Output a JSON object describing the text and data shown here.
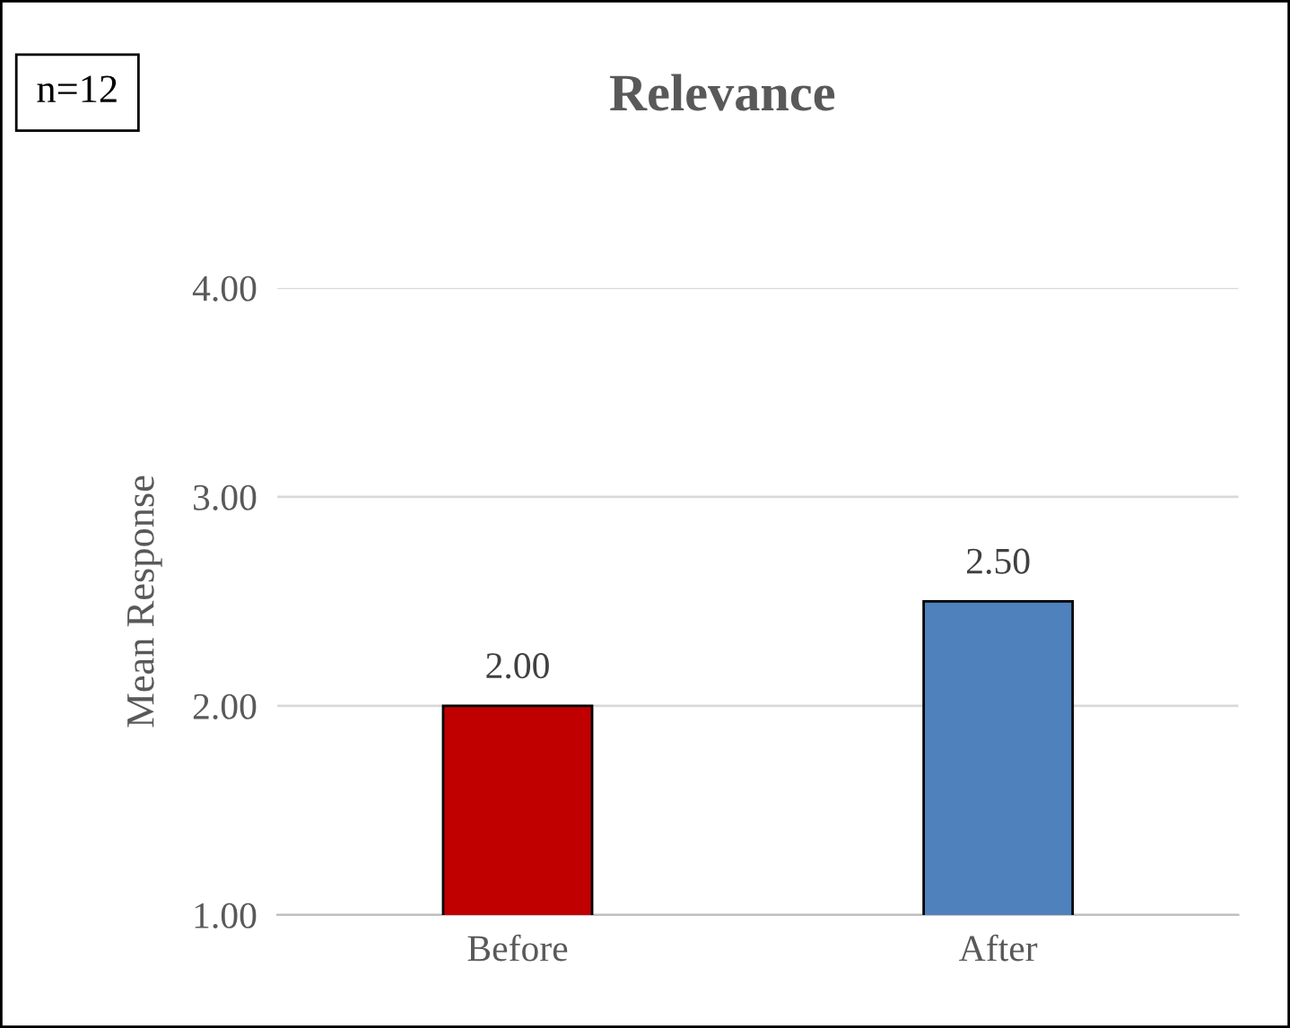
{
  "chart_data": {
    "type": "bar",
    "title": "Relevance",
    "ylabel": "Mean Response",
    "categories": [
      "Before",
      "After"
    ],
    "values": [
      2.0,
      2.5
    ],
    "colors": [
      "#c00000",
      "#4f81bd"
    ],
    "value_labels": [
      "2.00",
      "2.50"
    ],
    "ylim": [
      1,
      4
    ],
    "yticks": [
      {
        "value": 1,
        "label": "1.00"
      },
      {
        "value": 2,
        "label": "2.00"
      },
      {
        "value": 3,
        "label": "3.00"
      },
      {
        "value": 4,
        "label": "4.00"
      }
    ],
    "grid": "y",
    "annotations": [
      "n=12"
    ]
  }
}
